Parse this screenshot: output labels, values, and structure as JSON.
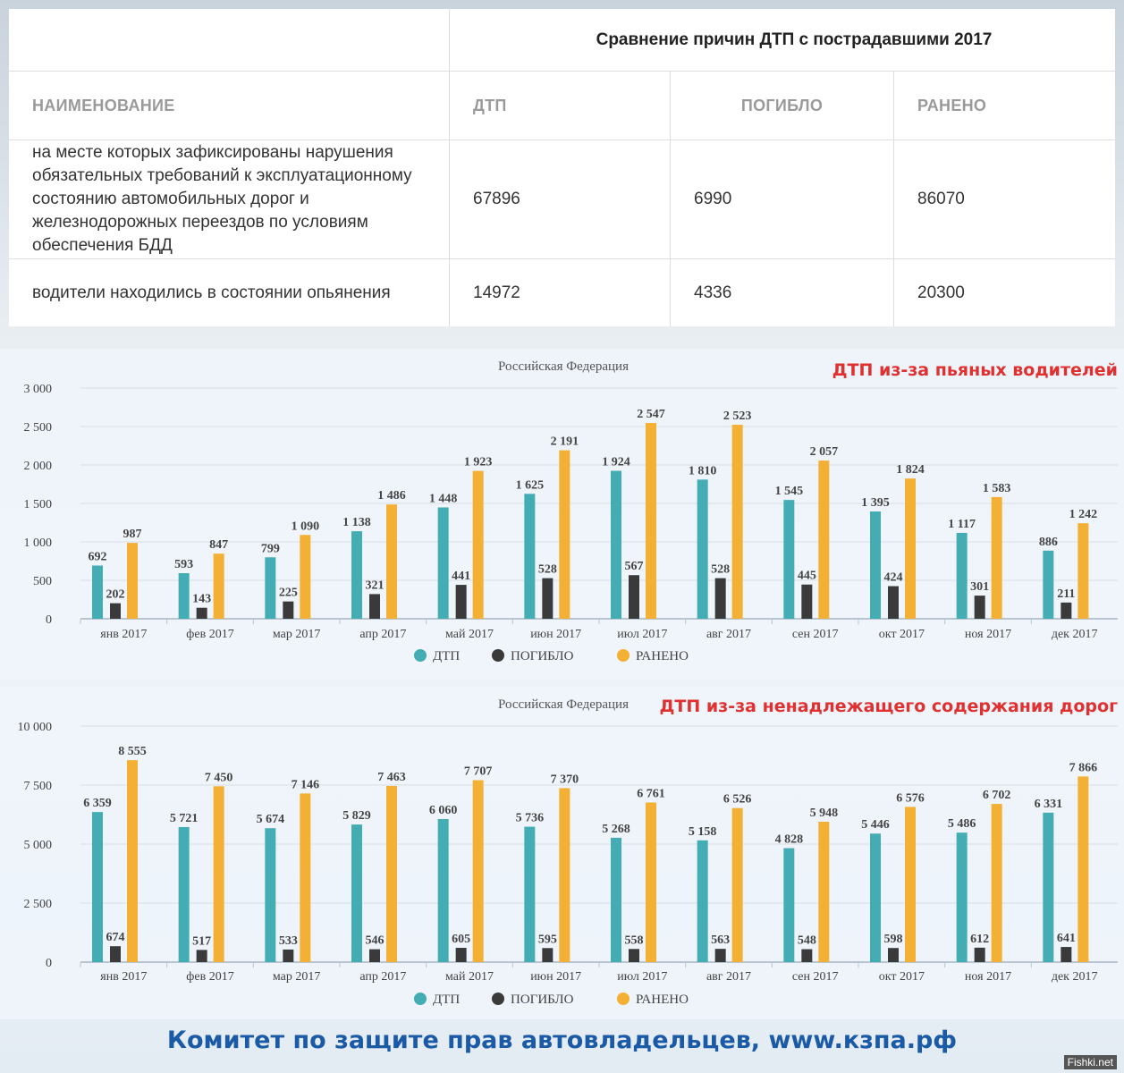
{
  "table": {
    "title": "Сравнение причин ДТП с пострадавшими 2017",
    "headers": [
      "НАИМЕНОВАНИЕ",
      "ДТП",
      "ПОГИБЛО",
      "РАНЕНО"
    ],
    "rows": [
      {
        "name": "на месте которых зафиксированы нарушения обязательных требований к эксплуатационному состоянию автомобильных дорог и железнодорожных переездов по условиям обеспечения БДД",
        "dtp": "67896",
        "killed": "6990",
        "injured": "86070"
      },
      {
        "name": "водители находились в состоянии опьянения",
        "dtp": "14972",
        "killed": "4336",
        "injured": "20300"
      }
    ]
  },
  "chart_data": [
    {
      "type": "bar",
      "title": "Российская Федерация",
      "heading": "ДТП из-за пьяных водителей",
      "categories": [
        "янв 2017",
        "фев 2017",
        "мар 2017",
        "апр 2017",
        "май 2017",
        "июн 2017",
        "июл 2017",
        "авг 2017",
        "сен 2017",
        "окт 2017",
        "ноя 2017",
        "дек 2017"
      ],
      "series": [
        {
          "name": "ДТП",
          "color": "#44adb4",
          "values": [
            692,
            593,
            799,
            1138,
            1448,
            1625,
            1924,
            1810,
            1545,
            1395,
            1117,
            886
          ]
        },
        {
          "name": "ПОГИБЛО",
          "color": "#3a3a3a",
          "values": [
            202,
            143,
            225,
            321,
            441,
            528,
            567,
            528,
            445,
            424,
            301,
            211
          ]
        },
        {
          "name": "РАНЕНО",
          "color": "#f3b035",
          "values": [
            987,
            847,
            1090,
            1486,
            1923,
            2191,
            2547,
            2523,
            2057,
            1824,
            1583,
            1242
          ]
        }
      ],
      "ylim": [
        0,
        3000
      ],
      "yticks": [
        0,
        500,
        1000,
        1500,
        2000,
        2500,
        3000
      ],
      "legend": "bottom"
    },
    {
      "type": "bar",
      "title": "Российская Федерация",
      "heading": "ДТП из-за ненадлежащего содержания дорог",
      "categories": [
        "янв 2017",
        "фев 2017",
        "мар 2017",
        "апр 2017",
        "май 2017",
        "июн 2017",
        "июл 2017",
        "авг 2017",
        "сен 2017",
        "окт 2017",
        "ноя 2017",
        "дек 2017"
      ],
      "series": [
        {
          "name": "ДТП",
          "color": "#44adb4",
          "values": [
            6359,
            5721,
            5674,
            5829,
            6060,
            5736,
            5268,
            5158,
            4828,
            5446,
            5486,
            6331
          ]
        },
        {
          "name": "ПОГИБЛО",
          "color": "#3a3a3a",
          "values": [
            674,
            517,
            533,
            546,
            605,
            595,
            558,
            563,
            548,
            598,
            612,
            641
          ]
        },
        {
          "name": "РАНЕНО",
          "color": "#f3b035",
          "values": [
            8555,
            7450,
            7146,
            7463,
            7707,
            7370,
            6761,
            6526,
            5948,
            6576,
            6702,
            7866
          ]
        }
      ],
      "ylim": [
        0,
        10000
      ],
      "yticks": [
        0,
        2500,
        5000,
        7500,
        10000
      ],
      "legend": "bottom"
    }
  ],
  "footer": "Комитет по защите прав автовладельцев, www.кзпа.рф",
  "watermark": "Fishki.net"
}
